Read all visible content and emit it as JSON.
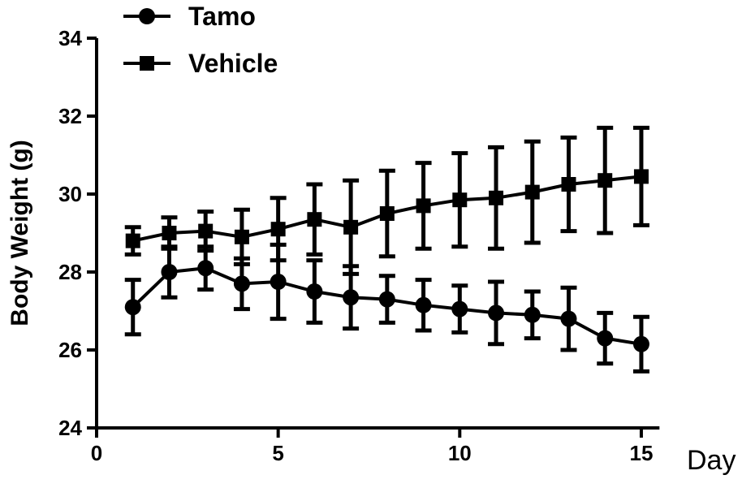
{
  "chart_data": {
    "type": "line",
    "title": "",
    "xlabel": "Day",
    "ylabel": "Body Weight (g)",
    "xlim": [
      0,
      15.5
    ],
    "ylim": [
      24,
      34
    ],
    "xticks": [
      0,
      5,
      10,
      15
    ],
    "yticks": [
      24,
      26,
      28,
      30,
      32,
      34
    ],
    "grid": false,
    "legend_position": "top-left",
    "error_bars": true,
    "x": [
      1,
      2,
      3,
      4,
      5,
      6,
      7,
      8,
      9,
      10,
      11,
      12,
      13,
      14,
      15
    ],
    "series": [
      {
        "name": "Tamo",
        "marker": "circle",
        "color": "#000000",
        "values": [
          27.1,
          28.0,
          28.1,
          27.7,
          27.75,
          27.5,
          27.35,
          27.3,
          27.15,
          27.05,
          26.95,
          26.9,
          26.8,
          26.3,
          26.15
        ],
        "errors": [
          0.7,
          0.65,
          0.55,
          0.65,
          0.95,
          0.8,
          0.8,
          0.6,
          0.65,
          0.6,
          0.8,
          0.6,
          0.8,
          0.65,
          0.7
        ]
      },
      {
        "name": "Vehicle",
        "marker": "square",
        "color": "#000000",
        "values": [
          28.8,
          29.0,
          29.05,
          28.9,
          29.1,
          29.35,
          29.15,
          29.5,
          29.7,
          29.85,
          29.9,
          30.05,
          30.25,
          30.35,
          30.45
        ],
        "errors": [
          0.35,
          0.4,
          0.5,
          0.7,
          0.8,
          0.9,
          1.2,
          1.1,
          1.1,
          1.2,
          1.3,
          1.3,
          1.2,
          1.35,
          1.25
        ]
      }
    ]
  }
}
